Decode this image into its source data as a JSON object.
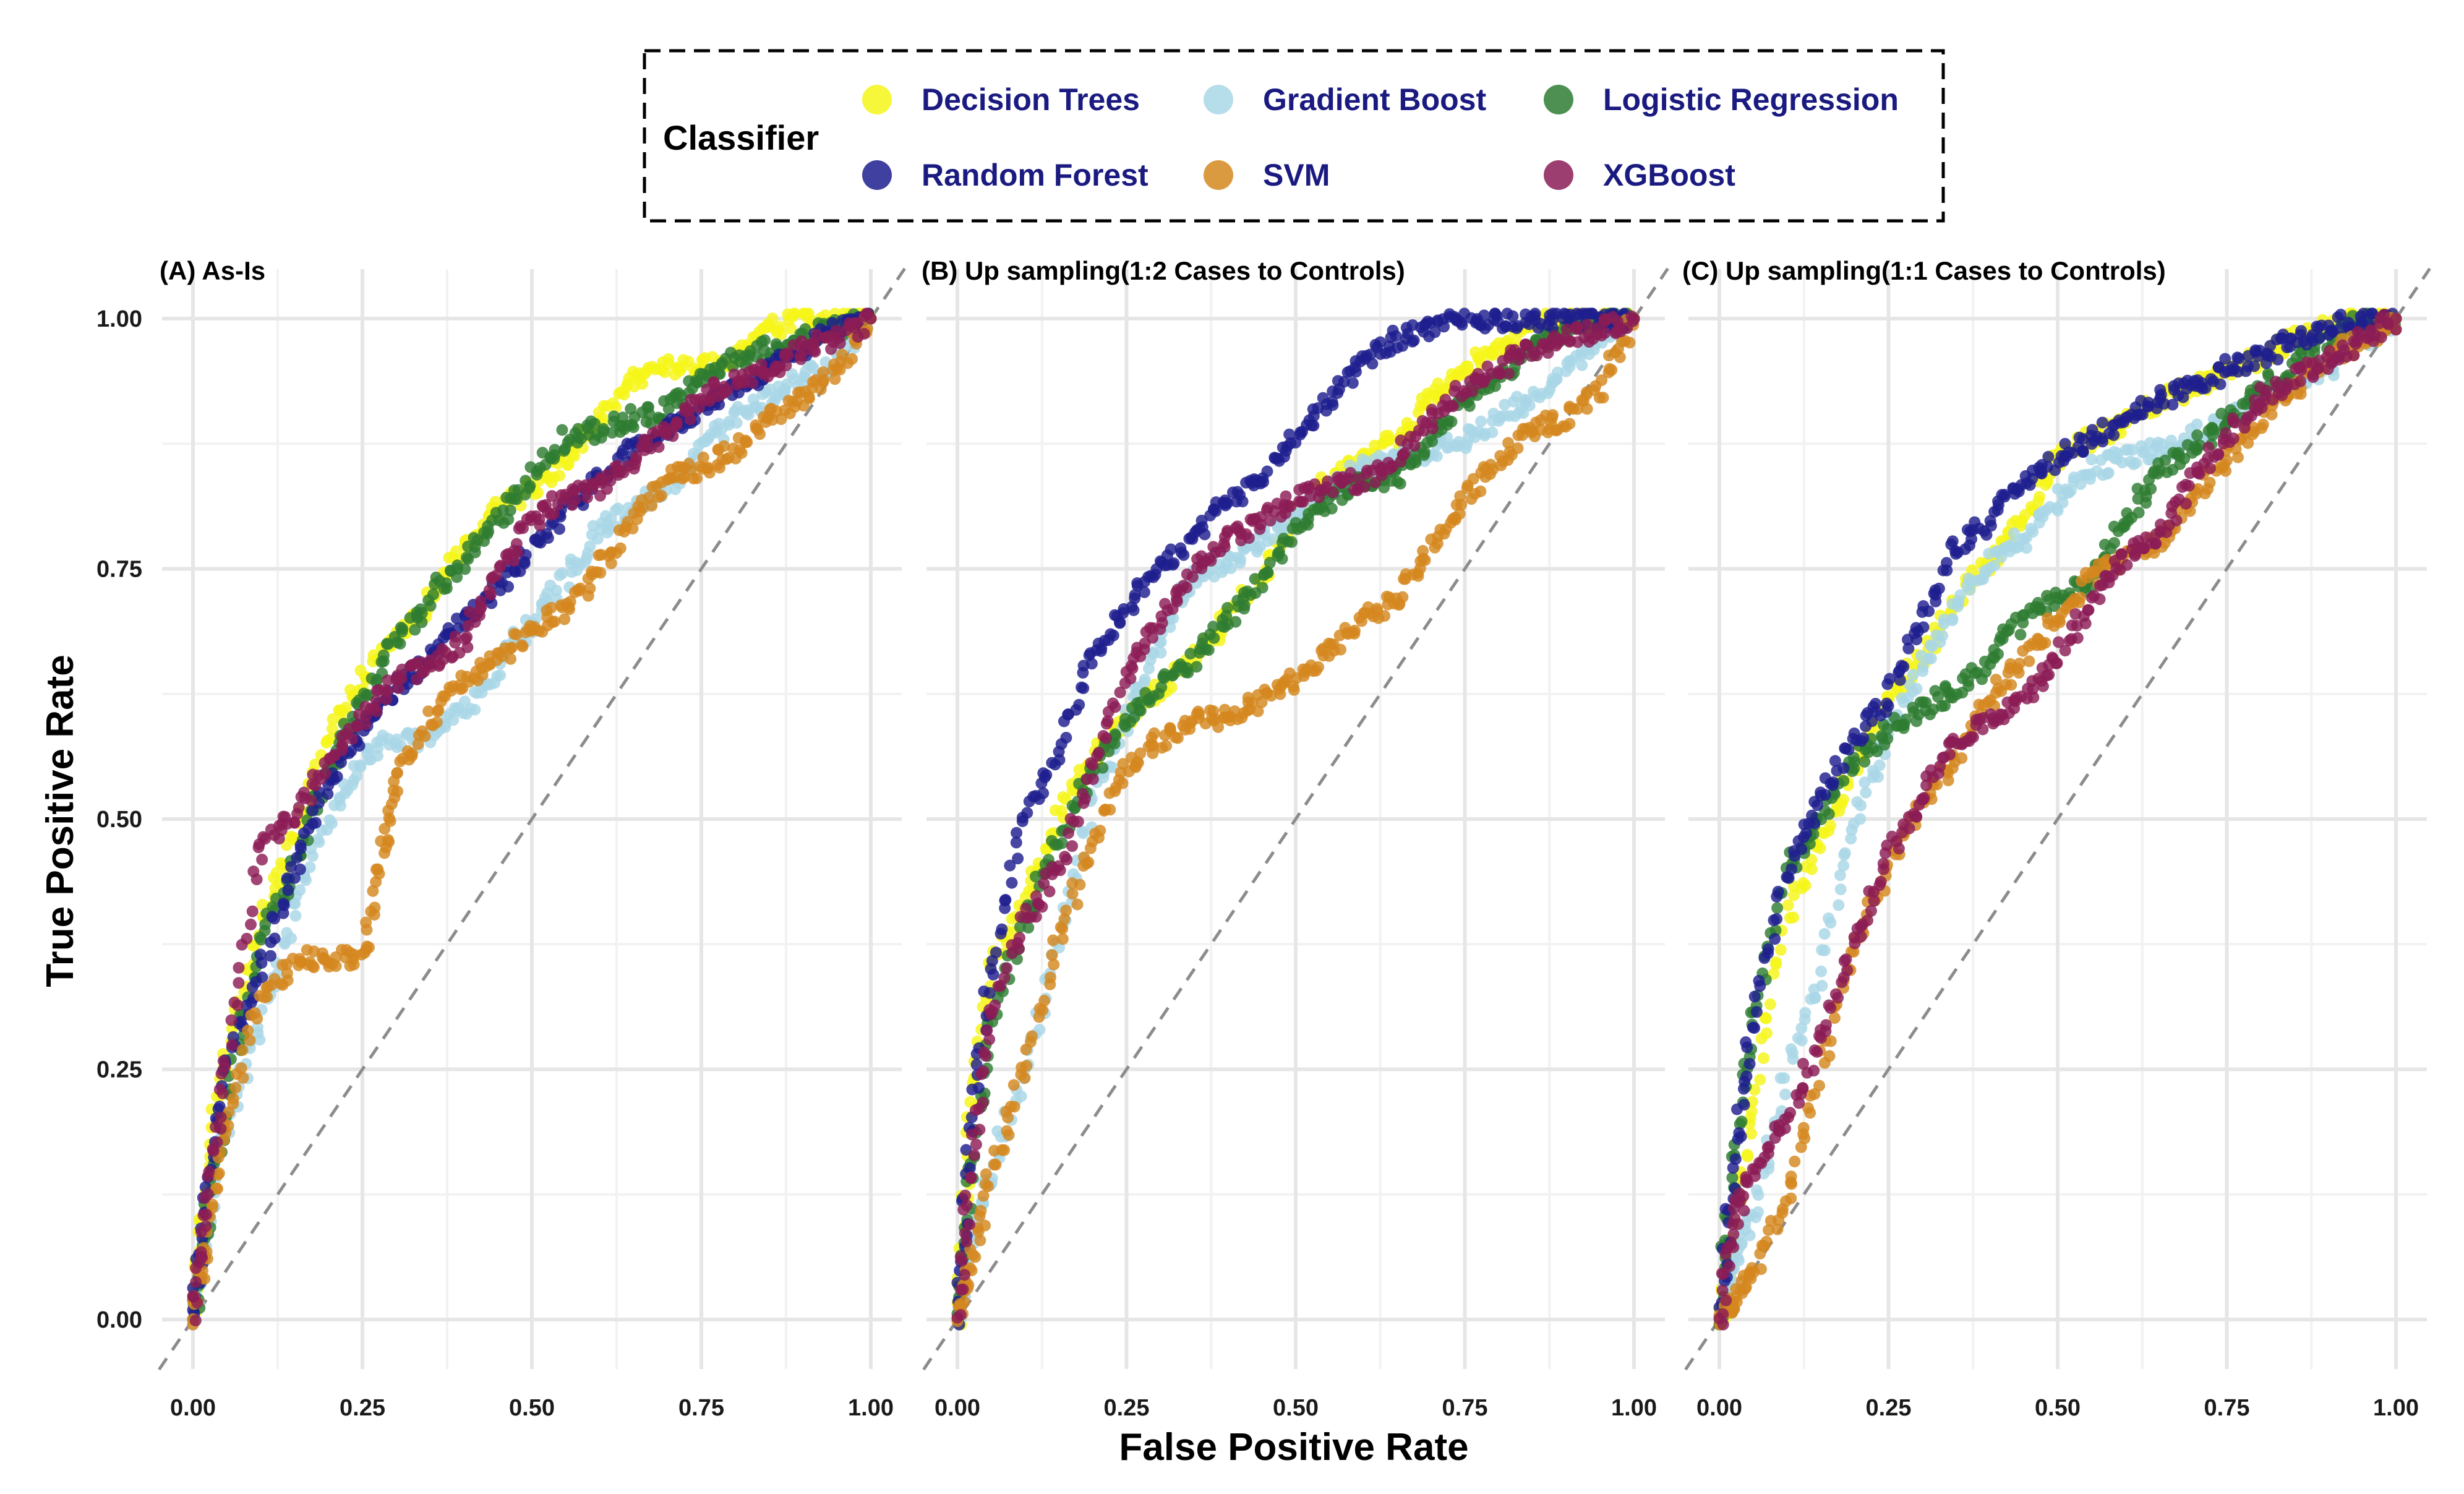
{
  "legend": {
    "title": "Classifier",
    "items": [
      {
        "name": "Decision Trees",
        "color": "#f5f518"
      },
      {
        "name": "Gradient Boost",
        "color": "#a9d7e6"
      },
      {
        "name": "Logistic Regression",
        "color": "#2e7d32"
      },
      {
        "name": "Random Forest",
        "color": "#1f1f8f"
      },
      {
        "name": "SVM",
        "color": "#d4881f"
      },
      {
        "name": "XGBoost",
        "color": "#8b1c56"
      }
    ]
  },
  "axes": {
    "xlabel": "False Positive Rate",
    "ylabel": "True Positive Rate",
    "xticks": [
      "0.00",
      "0.25",
      "0.50",
      "0.75",
      "1.00"
    ],
    "yticks": [
      "0.00",
      "0.25",
      "0.50",
      "0.75",
      "1.00"
    ]
  },
  "chart_data": [
    {
      "type": "scatter",
      "title": "(A) As-Is",
      "xlabel": "False Positive Rate",
      "ylabel": "True Positive Rate",
      "xlim": [
        0,
        1
      ],
      "ylim": [
        0,
        1
      ],
      "series": [
        {
          "name": "Decision Trees",
          "x": [
            0,
            0.02,
            0.05,
            0.1,
            0.15,
            0.2,
            0.25,
            0.3,
            0.35,
            0.4,
            0.45,
            0.5,
            0.55,
            0.6,
            0.65,
            0.7,
            0.75,
            0.8,
            0.85,
            0.9,
            0.95,
            1
          ],
          "y": [
            0,
            0.15,
            0.27,
            0.4,
            0.48,
            0.58,
            0.64,
            0.68,
            0.72,
            0.77,
            0.81,
            0.83,
            0.86,
            0.9,
            0.94,
            0.95,
            0.95,
            0.96,
            0.99,
            1,
            1,
            1
          ]
        },
        {
          "name": "Gradient Boost",
          "x": [
            0,
            0.02,
            0.05,
            0.1,
            0.15,
            0.2,
            0.25,
            0.3,
            0.35,
            0.4,
            0.45,
            0.5,
            0.55,
            0.6,
            0.65,
            0.7,
            0.75,
            0.8,
            0.85,
            0.9,
            0.95,
            1
          ],
          "y": [
            0,
            0.1,
            0.2,
            0.3,
            0.41,
            0.5,
            0.56,
            0.58,
            0.58,
            0.61,
            0.65,
            0.7,
            0.74,
            0.79,
            0.81,
            0.83,
            0.87,
            0.9,
            0.92,
            0.94,
            0.96,
            1
          ]
        },
        {
          "name": "Logistic Regression",
          "x": [
            0,
            0.02,
            0.05,
            0.1,
            0.15,
            0.2,
            0.25,
            0.3,
            0.35,
            0.4,
            0.45,
            0.5,
            0.55,
            0.6,
            0.65,
            0.7,
            0.75,
            0.8,
            0.85,
            0.9,
            0.95,
            1
          ],
          "y": [
            0,
            0.1,
            0.22,
            0.38,
            0.45,
            0.55,
            0.62,
            0.68,
            0.72,
            0.76,
            0.8,
            0.84,
            0.88,
            0.89,
            0.9,
            0.91,
            0.94,
            0.96,
            0.97,
            0.98,
            0.99,
            1
          ]
        },
        {
          "name": "Random Forest",
          "x": [
            0,
            0.02,
            0.05,
            0.1,
            0.15,
            0.2,
            0.25,
            0.3,
            0.35,
            0.4,
            0.45,
            0.5,
            0.55,
            0.6,
            0.65,
            0.7,
            0.75,
            0.8,
            0.85,
            0.9,
            0.95,
            1
          ],
          "y": [
            0,
            0.12,
            0.25,
            0.35,
            0.45,
            0.54,
            0.59,
            0.63,
            0.66,
            0.7,
            0.73,
            0.77,
            0.81,
            0.84,
            0.87,
            0.89,
            0.91,
            0.93,
            0.95,
            0.97,
            0.99,
            1
          ]
        },
        {
          "name": "SVM",
          "x": [
            0,
            0.02,
            0.05,
            0.1,
            0.15,
            0.2,
            0.25,
            0.28,
            0.3,
            0.35,
            0.4,
            0.45,
            0.5,
            0.55,
            0.6,
            0.65,
            0.7,
            0.75,
            0.8,
            0.85,
            0.9,
            0.95,
            1
          ],
          "y": [
            0,
            0.08,
            0.2,
            0.32,
            0.36,
            0.36,
            0.36,
            0.46,
            0.54,
            0.6,
            0.64,
            0.66,
            0.69,
            0.71,
            0.75,
            0.8,
            0.84,
            0.85,
            0.87,
            0.9,
            0.92,
            0.95,
            1
          ]
        },
        {
          "name": "XGBoost",
          "x": [
            0,
            0.02,
            0.05,
            0.1,
            0.15,
            0.2,
            0.25,
            0.3,
            0.35,
            0.4,
            0.45,
            0.5,
            0.55,
            0.6,
            0.65,
            0.7,
            0.75,
            0.8,
            0.85,
            0.9,
            0.95,
            1
          ],
          "y": [
            0,
            0.12,
            0.26,
            0.48,
            0.5,
            0.56,
            0.6,
            0.64,
            0.65,
            0.68,
            0.75,
            0.8,
            0.82,
            0.83,
            0.86,
            0.89,
            0.92,
            0.94,
            0.95,
            0.97,
            0.98,
            1
          ]
        }
      ]
    },
    {
      "type": "scatter",
      "title": "(B) Up sampling(1:2 Cases to Controls)",
      "xlabel": "False Positive Rate",
      "ylabel": "True Positive Rate",
      "xlim": [
        0,
        1
      ],
      "ylim": [
        0,
        1
      ],
      "series": [
        {
          "name": "Decision Trees",
          "x": [
            0,
            0.02,
            0.05,
            0.1,
            0.15,
            0.2,
            0.25,
            0.3,
            0.35,
            0.4,
            0.45,
            0.5,
            0.55,
            0.6,
            0.65,
            0.7,
            0.75,
            0.8,
            0.85,
            0.9,
            0.95,
            1
          ],
          "y": [
            0,
            0.2,
            0.35,
            0.42,
            0.5,
            0.56,
            0.6,
            0.63,
            0.66,
            0.7,
            0.74,
            0.8,
            0.84,
            0.86,
            0.88,
            0.92,
            0.95,
            0.97,
            1,
            1,
            1,
            1
          ]
        },
        {
          "name": "Gradient Boost",
          "x": [
            0,
            0.02,
            0.05,
            0.1,
            0.15,
            0.2,
            0.25,
            0.3,
            0.35,
            0.4,
            0.45,
            0.5,
            0.55,
            0.6,
            0.65,
            0.7,
            0.75,
            0.8,
            0.85,
            0.9,
            0.95,
            1
          ],
          "y": [
            0,
            0.08,
            0.15,
            0.25,
            0.38,
            0.52,
            0.6,
            0.68,
            0.74,
            0.76,
            0.78,
            0.8,
            0.83,
            0.85,
            0.86,
            0.87,
            0.88,
            0.9,
            0.92,
            0.95,
            0.98,
            1
          ]
        },
        {
          "name": "Logistic Regression",
          "x": [
            0,
            0.02,
            0.05,
            0.1,
            0.15,
            0.2,
            0.25,
            0.3,
            0.35,
            0.4,
            0.45,
            0.5,
            0.55,
            0.6,
            0.65,
            0.7,
            0.75,
            0.8,
            0.85,
            0.9,
            0.95,
            1
          ],
          "y": [
            0,
            0.15,
            0.3,
            0.4,
            0.48,
            0.55,
            0.6,
            0.63,
            0.66,
            0.7,
            0.74,
            0.79,
            0.82,
            0.84,
            0.84,
            0.88,
            0.92,
            0.94,
            0.97,
            0.99,
            1,
            1
          ]
        },
        {
          "name": "Random Forest",
          "x": [
            0,
            0.02,
            0.05,
            0.1,
            0.15,
            0.2,
            0.25,
            0.3,
            0.35,
            0.4,
            0.45,
            0.5,
            0.55,
            0.6,
            0.65,
            0.7,
            0.75,
            0.8,
            0.85,
            0.9,
            0.95,
            1
          ],
          "y": [
            0,
            0.2,
            0.35,
            0.5,
            0.57,
            0.67,
            0.71,
            0.75,
            0.78,
            0.82,
            0.84,
            0.88,
            0.92,
            0.96,
            0.98,
            0.99,
            1,
            1,
            1,
            1,
            1,
            1
          ]
        },
        {
          "name": "SVM",
          "x": [
            0,
            0.02,
            0.05,
            0.1,
            0.15,
            0.2,
            0.25,
            0.3,
            0.35,
            0.4,
            0.45,
            0.5,
            0.55,
            0.6,
            0.65,
            0.7,
            0.75,
            0.8,
            0.85,
            0.9,
            0.95,
            1
          ],
          "y": [
            0,
            0.05,
            0.15,
            0.25,
            0.38,
            0.48,
            0.55,
            0.58,
            0.6,
            0.6,
            0.62,
            0.64,
            0.67,
            0.7,
            0.72,
            0.77,
            0.82,
            0.86,
            0.89,
            0.9,
            0.93,
            1
          ]
        },
        {
          "name": "XGBoost",
          "x": [
            0,
            0.02,
            0.05,
            0.1,
            0.15,
            0.2,
            0.25,
            0.3,
            0.35,
            0.4,
            0.45,
            0.5,
            0.55,
            0.6,
            0.65,
            0.7,
            0.75,
            0.8,
            0.85,
            0.9,
            0.95,
            1
          ],
          "y": [
            0,
            0.15,
            0.3,
            0.4,
            0.45,
            0.55,
            0.65,
            0.7,
            0.75,
            0.78,
            0.8,
            0.82,
            0.83,
            0.84,
            0.86,
            0.9,
            0.93,
            0.95,
            0.97,
            0.98,
            0.99,
            1
          ]
        }
      ]
    },
    {
      "type": "scatter",
      "title": "(C) Up sampling(1:1 Cases to Controls)",
      "xlabel": "False Positive Rate",
      "ylabel": "True Positive Rate",
      "xlim": [
        0,
        1
      ],
      "ylim": [
        0,
        1
      ],
      "series": [
        {
          "name": "Decision Trees",
          "x": [
            0,
            0.02,
            0.05,
            0.1,
            0.15,
            0.2,
            0.25,
            0.3,
            0.35,
            0.4,
            0.45,
            0.5,
            0.55,
            0.6,
            0.65,
            0.7,
            0.75,
            0.8,
            0.85,
            0.9,
            0.95,
            1
          ],
          "y": [
            0,
            0.08,
            0.22,
            0.4,
            0.48,
            0.55,
            0.62,
            0.66,
            0.72,
            0.76,
            0.8,
            0.86,
            0.88,
            0.9,
            0.92,
            0.93,
            0.95,
            0.96,
            0.98,
            0.99,
            1,
            1
          ]
        },
        {
          "name": "Gradient Boost",
          "x": [
            0,
            0.02,
            0.05,
            0.1,
            0.15,
            0.2,
            0.25,
            0.3,
            0.35,
            0.4,
            0.45,
            0.5,
            0.55,
            0.6,
            0.65,
            0.7,
            0.75,
            0.8,
            0.85,
            0.9,
            0.95,
            1
          ],
          "y": [
            0,
            0.05,
            0.1,
            0.25,
            0.35,
            0.5,
            0.58,
            0.65,
            0.72,
            0.76,
            0.78,
            0.82,
            0.85,
            0.86,
            0.87,
            0.88,
            0.9,
            0.92,
            0.94,
            0.95,
            0.98,
            1
          ]
        },
        {
          "name": "Logistic Regression",
          "x": [
            0,
            0.02,
            0.05,
            0.1,
            0.15,
            0.2,
            0.25,
            0.3,
            0.35,
            0.4,
            0.45,
            0.5,
            0.55,
            0.6,
            0.65,
            0.7,
            0.75,
            0.8,
            0.85,
            0.9,
            0.95,
            1
          ],
          "y": [
            0,
            0.15,
            0.3,
            0.45,
            0.5,
            0.56,
            0.59,
            0.61,
            0.63,
            0.66,
            0.7,
            0.72,
            0.74,
            0.8,
            0.85,
            0.87,
            0.9,
            0.93,
            0.95,
            0.98,
            1,
            1
          ]
        },
        {
          "name": "Random Forest",
          "x": [
            0,
            0.02,
            0.05,
            0.1,
            0.15,
            0.2,
            0.25,
            0.3,
            0.35,
            0.4,
            0.45,
            0.5,
            0.55,
            0.6,
            0.65,
            0.7,
            0.75,
            0.8,
            0.85,
            0.9,
            0.95,
            1
          ],
          "y": [
            0,
            0.15,
            0.3,
            0.45,
            0.52,
            0.58,
            0.62,
            0.7,
            0.77,
            0.8,
            0.84,
            0.86,
            0.88,
            0.9,
            0.92,
            0.93,
            0.95,
            0.96,
            0.98,
            0.99,
            1,
            1
          ]
        },
        {
          "name": "SVM",
          "x": [
            0,
            0.02,
            0.05,
            0.1,
            0.15,
            0.2,
            0.25,
            0.3,
            0.35,
            0.4,
            0.45,
            0.5,
            0.55,
            0.6,
            0.65,
            0.7,
            0.75,
            0.8,
            0.85,
            0.9,
            0.95,
            1
          ],
          "y": [
            0,
            0.02,
            0.05,
            0.12,
            0.25,
            0.38,
            0.45,
            0.52,
            0.56,
            0.62,
            0.66,
            0.7,
            0.74,
            0.76,
            0.78,
            0.82,
            0.86,
            0.9,
            0.93,
            0.96,
            0.98,
            1
          ]
        },
        {
          "name": "XGBoost",
          "x": [
            0,
            0.02,
            0.05,
            0.1,
            0.15,
            0.2,
            0.25,
            0.3,
            0.35,
            0.4,
            0.45,
            0.5,
            0.55,
            0.6,
            0.65,
            0.7,
            0.75,
            0.8,
            0.85,
            0.9,
            0.95,
            1
          ],
          "y": [
            0,
            0.1,
            0.15,
            0.2,
            0.28,
            0.38,
            0.46,
            0.52,
            0.58,
            0.6,
            0.62,
            0.66,
            0.72,
            0.76,
            0.78,
            0.84,
            0.88,
            0.92,
            0.94,
            0.96,
            0.98,
            1
          ]
        }
      ]
    }
  ]
}
